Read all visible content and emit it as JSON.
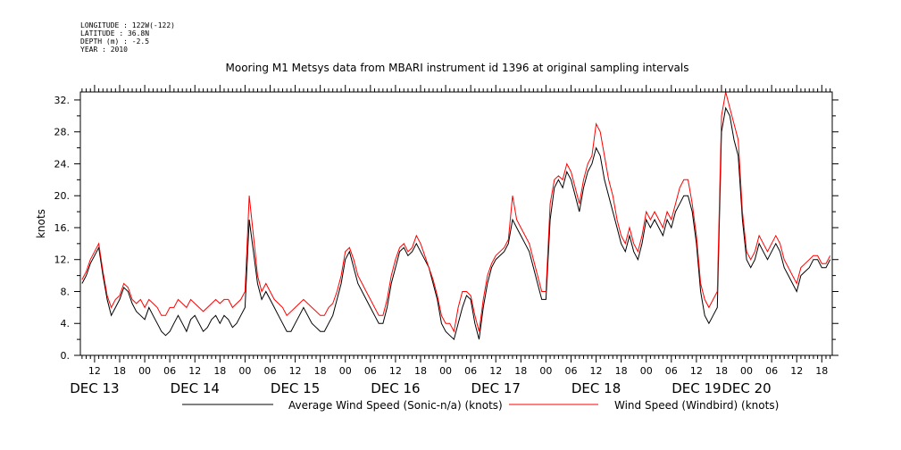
{
  "header": {
    "meta_lines": [
      "LONGITUDE : 122W(-122)",
      "LATITUDE : 36.8N",
      "DEPTH (m) : -2.5",
      "YEAR : 2010"
    ],
    "title": "Mooring M1 Metsys data from MBARI instrument id 1396 at original sampling intervals"
  },
  "chart_data": {
    "type": "line",
    "ylabel": "knots",
    "ylim": [
      0,
      33
    ],
    "yticks": [
      0.0,
      4.0,
      8.0,
      12.0,
      16.0,
      20.0,
      24.0,
      28.0,
      32.0
    ],
    "ytick_labels": [
      "0.",
      "4.",
      "8.",
      "12.",
      "16.",
      "20.",
      "24.",
      "28.",
      "32."
    ],
    "x_units": "hours since Dec 13 00:00",
    "xlim": [
      8.6,
      188.5
    ],
    "x_hour_ticks": [
      12,
      18,
      24,
      30,
      36,
      42,
      48,
      54,
      60,
      66,
      72,
      78,
      84,
      90,
      96,
      102,
      108,
      114,
      120,
      126,
      132,
      138,
      144,
      150,
      156,
      162,
      168,
      174,
      180,
      186
    ],
    "x_hour_labels": [
      "12",
      "18",
      "00",
      "06",
      "12",
      "18",
      "00",
      "06",
      "12",
      "18",
      "00",
      "06",
      "12",
      "18",
      "00",
      "06",
      "12",
      "18",
      "00",
      "06",
      "12",
      "18",
      "00",
      "06",
      "12",
      "18",
      "00",
      "06",
      "12",
      "18"
    ],
    "x_day_labels": [
      {
        "x": 12,
        "label": "DEC 13"
      },
      {
        "x": 36,
        "label": "DEC 14"
      },
      {
        "x": 60,
        "label": "DEC 15"
      },
      {
        "x": 84,
        "label": "DEC 16"
      },
      {
        "x": 108,
        "label": "DEC 17"
      },
      {
        "x": 132,
        "label": "DEC 18"
      },
      {
        "x": 156,
        "label": "DEC 19"
      },
      {
        "x": 168,
        "label": "DEC 20"
      }
    ],
    "series": [
      {
        "name": "Average Wind Speed (Sonic-n/a) (knots)",
        "color": "#000000",
        "x": [
          9,
          10,
          11,
          12,
          13,
          14,
          15,
          16,
          17,
          18,
          19,
          20,
          21,
          22,
          23,
          24,
          25,
          26,
          27,
          28,
          29,
          30,
          31,
          32,
          33,
          34,
          35,
          36,
          37,
          38,
          39,
          40,
          41,
          42,
          43,
          44,
          45,
          46,
          47,
          48,
          49,
          50,
          51,
          52,
          53,
          54,
          55,
          56,
          57,
          58,
          59,
          60,
          61,
          62,
          63,
          64,
          65,
          66,
          67,
          68,
          69,
          70,
          71,
          72,
          73,
          74,
          75,
          76,
          77,
          78,
          79,
          80,
          81,
          82,
          83,
          84,
          85,
          86,
          87,
          88,
          89,
          90,
          91,
          92,
          93,
          94,
          95,
          96,
          97,
          98,
          99,
          100,
          101,
          102,
          103,
          104,
          105,
          106,
          107,
          108,
          109,
          110,
          111,
          112,
          113,
          114,
          115,
          116,
          117,
          118,
          119,
          120,
          121,
          122,
          123,
          124,
          125,
          126,
          127,
          128,
          129,
          130,
          131,
          132,
          133,
          134,
          135,
          136,
          137,
          138,
          139,
          140,
          141,
          142,
          143,
          144,
          145,
          146,
          147,
          148,
          149,
          150,
          151,
          152,
          153,
          154,
          155,
          156,
          157,
          158,
          159,
          160,
          161,
          162,
          163,
          164,
          165,
          166,
          167,
          168,
          169,
          170,
          171,
          172,
          173,
          174,
          175,
          176,
          177,
          178,
          179,
          180,
          181,
          182,
          183,
          184,
          185,
          186,
          187,
          188
        ],
        "values": [
          9,
          10,
          11.5,
          12.5,
          13.5,
          10,
          7,
          5,
          6,
          7,
          8.5,
          8,
          6.5,
          5.5,
          5,
          4.5,
          6,
          5,
          4,
          3,
          2.5,
          3,
          4,
          5,
          4,
          3,
          4.5,
          5,
          4,
          3,
          3.5,
          4.5,
          5,
          4,
          5,
          4.5,
          3.5,
          4,
          5,
          6,
          17,
          13,
          9,
          7,
          8,
          7,
          6,
          5,
          4,
          3,
          3,
          4,
          5,
          6,
          5,
          4,
          3.5,
          3,
          3,
          4,
          5,
          7,
          9,
          12,
          13,
          11,
          9,
          8,
          7,
          6,
          5,
          4,
          4,
          6,
          9,
          11,
          13,
          13.5,
          12.5,
          13,
          14,
          13,
          12,
          11,
          9,
          7,
          4,
          3,
          2.5,
          2,
          4,
          6,
          7.5,
          7,
          4,
          2,
          6,
          9,
          11,
          12,
          12.5,
          13,
          14,
          17,
          16,
          15,
          14,
          13,
          11,
          9,
          7,
          7,
          17,
          21,
          22,
          21,
          23,
          22,
          20,
          18,
          21,
          23,
          24,
          26,
          25,
          22,
          20,
          18,
          16,
          14,
          13,
          15,
          13,
          12,
          14,
          17,
          16,
          17,
          16,
          15,
          17,
          16,
          18,
          19,
          20,
          20,
          18,
          14,
          8,
          5,
          4,
          5,
          6,
          28,
          31,
          30,
          27,
          25,
          17,
          12,
          11,
          12,
          14,
          13,
          12,
          13,
          14,
          13,
          11,
          10,
          9,
          8,
          10,
          10.5,
          11,
          12,
          12,
          11,
          11,
          12
        ]
      },
      {
        "name": "Wind Speed (Windbird) (knots)",
        "color": "#ff0000",
        "x": [
          9,
          10,
          11,
          12,
          13,
          14,
          15,
          16,
          17,
          18,
          19,
          20,
          21,
          22,
          23,
          24,
          25,
          26,
          27,
          28,
          29,
          30,
          31,
          32,
          33,
          34,
          35,
          36,
          37,
          38,
          39,
          40,
          41,
          42,
          43,
          44,
          45,
          46,
          47,
          48,
          49,
          50,
          51,
          52,
          53,
          54,
          55,
          56,
          57,
          58,
          59,
          60,
          61,
          62,
          63,
          64,
          65,
          66,
          67,
          68,
          69,
          70,
          71,
          72,
          73,
          74,
          75,
          76,
          77,
          78,
          79,
          80,
          81,
          82,
          83,
          84,
          85,
          86,
          87,
          88,
          89,
          90,
          91,
          92,
          93,
          94,
          95,
          96,
          97,
          98,
          99,
          100,
          101,
          102,
          103,
          104,
          105,
          106,
          107,
          108,
          109,
          110,
          111,
          112,
          113,
          114,
          115,
          116,
          117,
          118,
          119,
          120,
          121,
          122,
          123,
          124,
          125,
          126,
          127,
          128,
          129,
          130,
          131,
          132,
          133,
          134,
          135,
          136,
          137,
          138,
          139,
          140,
          141,
          142,
          143,
          144,
          145,
          146,
          147,
          148,
          149,
          150,
          151,
          152,
          153,
          154,
          155,
          156,
          157,
          158,
          159,
          160,
          161,
          162,
          163,
          164,
          165,
          166,
          167,
          168,
          169,
          170,
          171,
          172,
          173,
          174,
          175,
          176,
          177,
          178,
          179,
          180,
          181,
          182,
          183,
          184,
          185,
          186,
          187,
          188
        ],
        "values": [
          9.5,
          10.5,
          12,
          13,
          14,
          10.5,
          7.5,
          6,
          7,
          7.5,
          9,
          8.5,
          7,
          6.5,
          7,
          6,
          7,
          6.5,
          6,
          5,
          5,
          6,
          6,
          7,
          6.5,
          6,
          7,
          6.5,
          6,
          5.5,
          6,
          6.5,
          7,
          6.5,
          7,
          7,
          6,
          6.5,
          7,
          8,
          20,
          15,
          10,
          8,
          9,
          8,
          7,
          6.5,
          6,
          5,
          5.5,
          6,
          6.5,
          7,
          6.5,
          6,
          5.5,
          5,
          5,
          6,
          6.5,
          8,
          10,
          13,
          13.5,
          12,
          10,
          9,
          8,
          7,
          6,
          5,
          5,
          7,
          10,
          12,
          13.5,
          14,
          13,
          13.5,
          15,
          14,
          12.5,
          11,
          9.5,
          7.5,
          5,
          4,
          4,
          3,
          6,
          8,
          8,
          7.5,
          5,
          3,
          7,
          10,
          11.5,
          12.5,
          13,
          13.5,
          14.5,
          20,
          17,
          16,
          15,
          14,
          12,
          10,
          8,
          8,
          19,
          22,
          22.5,
          22,
          24,
          23,
          21,
          19,
          22,
          24,
          25,
          29,
          28,
          25,
          22,
          20,
          17,
          15,
          14,
          16,
          14,
          13,
          15,
          18,
          17,
          18,
          17,
          16,
          18,
          17,
          19,
          21,
          22,
          22,
          19,
          15,
          9,
          7,
          6,
          7,
          8,
          30,
          33,
          31,
          29,
          27,
          18,
          13,
          12,
          13,
          15,
          14,
          13,
          14,
          15,
          14,
          12,
          11,
          10,
          9,
          11,
          11.5,
          12,
          12.5,
          12.5,
          11.5,
          11.5,
          12.5
        ]
      }
    ]
  }
}
